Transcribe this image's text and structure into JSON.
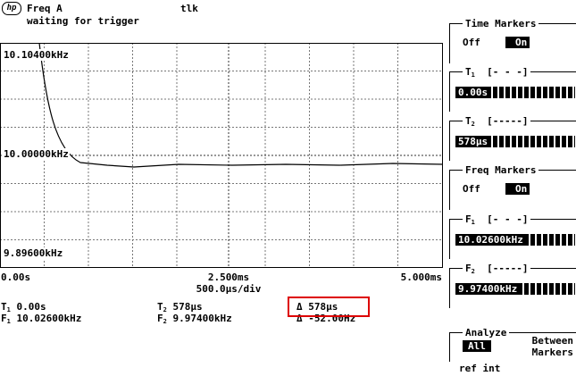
{
  "header": {
    "logo": "hp",
    "title": "Freq A",
    "status": "tlk",
    "message": "waiting for trigger"
  },
  "plot": {
    "y_top": "10.10400kHz",
    "y_mid": "10.00000kHz",
    "y_bottom": "9.89600kHz",
    "x_left": "0.00s",
    "x_mid": "2.500ms",
    "x_right": "5.000ms",
    "scale": "500.0µs/div"
  },
  "markers": {
    "t1": {
      "name": "T",
      "sub": "1",
      "value": "0.00s"
    },
    "t2": {
      "name": "T",
      "sub": "2",
      "value": "578µs"
    },
    "dt": "Δ 578µs",
    "f1": {
      "name": "F",
      "sub": "1",
      "value": "10.02600kHz"
    },
    "f2": {
      "name": "F",
      "sub": "2",
      "value": "9.97400kHz"
    },
    "df": "Δ -52.00Hz"
  },
  "softkeys": [
    {
      "label": "Time Markers",
      "off": "Off",
      "on": "On"
    },
    {
      "name": "T",
      "sub": "1",
      "range": "[- - -]",
      "value": "0.00s"
    },
    {
      "name": "T",
      "sub": "2",
      "range": "[-----]",
      "value": "578µs"
    },
    {
      "label": "Freq Markers",
      "off": "Off",
      "on": "On"
    },
    {
      "name": "F",
      "sub": "1",
      "range": "[- - -]",
      "value": "10.02600kHz"
    },
    {
      "name": "F",
      "sub": "2",
      "range": "[-----]",
      "value": "9.97400kHz"
    },
    {
      "label": "Analyze",
      "on": "All",
      "off": "Between Markers"
    }
  ],
  "footer": "ref int"
}
